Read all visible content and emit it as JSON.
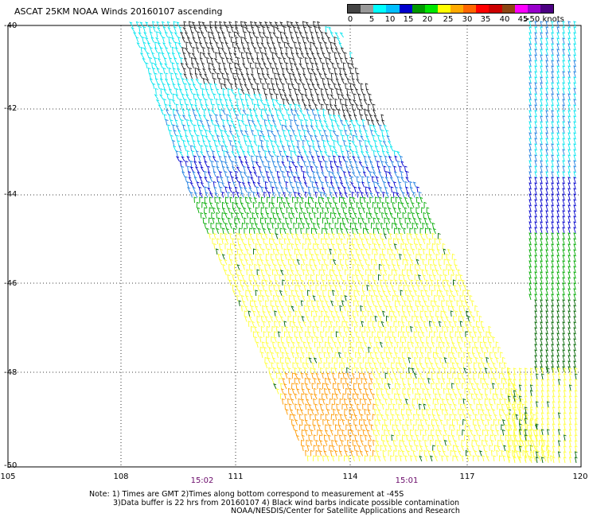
{
  "title": "ASCAT 25KM NOAA Winds 20160107 ascending",
  "legend": {
    "labels": [
      "0",
      "5",
      "10",
      "15",
      "20",
      "25",
      "30",
      "35",
      "40",
      "45",
      ">50 knots"
    ],
    "colors": [
      "#444444",
      "#999999",
      "#00ffff",
      "#00bfff",
      "#0000cd",
      "#009900",
      "#00e600",
      "#ffff00",
      "#ffaa00",
      "#ff6600",
      "#ff0000",
      "#cc0000",
      "#8b4513",
      "#ff00ff",
      "#9900cc",
      "#4b0082"
    ]
  },
  "lat_ticks": [
    "-40",
    "-42",
    "-44",
    "-46",
    "-48",
    "-50"
  ],
  "lon_ticks": [
    "105",
    "108",
    "111",
    "114",
    "117",
    "120"
  ],
  "time_labels": [
    "15:02",
    "15:01"
  ],
  "notes": [
    "Note: 1) Times are GMT 2)Times along bottom correspond to measurement at -45S",
    "3)Data buffer is 22 hrs from 20160107 4) Black wind barbs indicate possible contamination",
    "NOAA/NESDIS/Center for Satellite Applications and Research"
  ],
  "wind_colors": {
    "calm": "#222222",
    "light": "#00e5ee",
    "moderate": "#1e7fe0",
    "fresh": "#0000cd",
    "strong": "#00aa00",
    "gale": "#ffff33",
    "storm": "#ff9900",
    "dark_green": "#006600"
  }
}
